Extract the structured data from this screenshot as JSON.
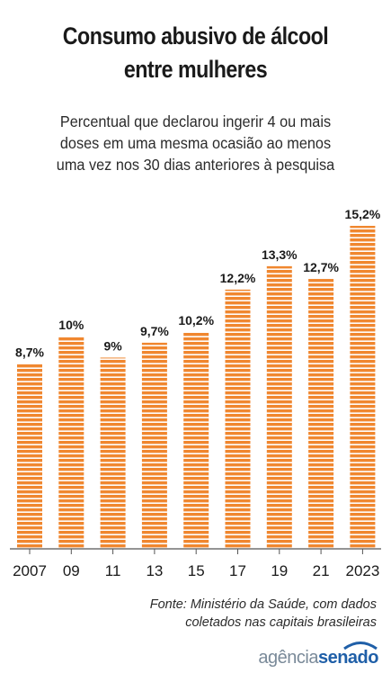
{
  "header": {
    "title_line1": "Consumo abusivo de álcool",
    "title_line2": "entre mulheres",
    "subtitle_line1": "Percentual que declarou ingerir 4 ou mais",
    "subtitle_line2": "doses em uma mesma ocasião ao menos",
    "subtitle_line3": "uma vez nos 30 dias anteriores à pesquisa"
  },
  "chart_data": {
    "type": "bar",
    "categories": [
      "2007",
      "09",
      "11",
      "13",
      "15",
      "17",
      "19",
      "21",
      "2023"
    ],
    "values": [
      8.7,
      10,
      9,
      9.7,
      10.2,
      12.2,
      13.3,
      12.7,
      15.2
    ],
    "value_labels": [
      "8,7%",
      "10%",
      "9%",
      "9,7%",
      "10,2%",
      "12,2%",
      "13,3%",
      "12,7%",
      "15,2%"
    ],
    "ylim": [
      0,
      15.2
    ],
    "grid": false,
    "bar_color": "#f0872f",
    "stripe_color": "#ffffff"
  },
  "footer": {
    "source_line1": "Fonte: Ministério da Saúde, com dados",
    "source_line2": "coletados nas capitais brasileiras",
    "logo_part1": "agência",
    "logo_part2": "senado",
    "logo_color": "#1f5fa8"
  }
}
